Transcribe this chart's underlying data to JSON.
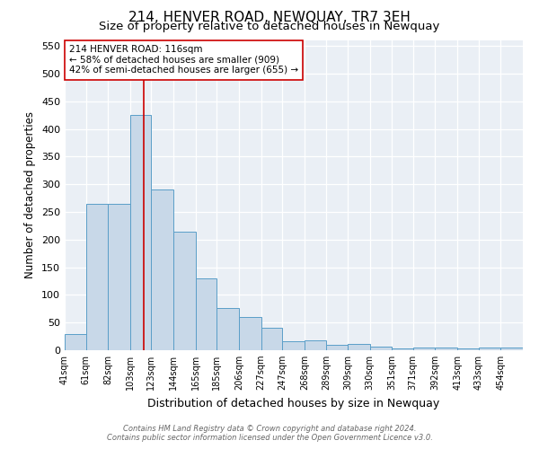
{
  "title": "214, HENVER ROAD, NEWQUAY, TR7 3EH",
  "subtitle": "Size of property relative to detached houses in Newquay",
  "xlabel": "Distribution of detached houses by size in Newquay",
  "ylabel": "Number of detached properties",
  "footnote1": "Contains HM Land Registry data © Crown copyright and database right 2024.",
  "footnote2": "Contains public sector information licensed under the Open Government Licence v3.0.",
  "bin_labels": [
    "41sqm",
    "61sqm",
    "82sqm",
    "103sqm",
    "123sqm",
    "144sqm",
    "165sqm",
    "185sqm",
    "206sqm",
    "227sqm",
    "247sqm",
    "268sqm",
    "289sqm",
    "309sqm",
    "330sqm",
    "351sqm",
    "371sqm",
    "392sqm",
    "413sqm",
    "433sqm",
    "454sqm"
  ],
  "bar_heights": [
    30,
    265,
    265,
    425,
    290,
    215,
    130,
    77,
    60,
    40,
    16,
    18,
    10,
    11,
    6,
    4,
    5,
    5,
    4,
    5,
    5
  ],
  "bar_color": "#c8d8e8",
  "bar_edge_color": "#5a9ec8",
  "annotation_line1": "214 HENVER ROAD: 116sqm",
  "annotation_line2": "← 58% of detached houses are smaller (909)",
  "annotation_line3": "42% of semi-detached houses are larger (655) →",
  "annotation_box_color": "#ffffff",
  "annotation_box_edge_color": "#cc0000",
  "red_line_x": 116,
  "red_line_color": "#cc0000",
  "ylim": [
    0,
    560
  ],
  "yticks": [
    0,
    50,
    100,
    150,
    200,
    250,
    300,
    350,
    400,
    450,
    500,
    550
  ],
  "background_color": "#eaeff5",
  "title_fontsize": 11,
  "subtitle_fontsize": 9.5,
  "xlabel_fontsize": 9,
  "ylabel_fontsize": 8.5
}
